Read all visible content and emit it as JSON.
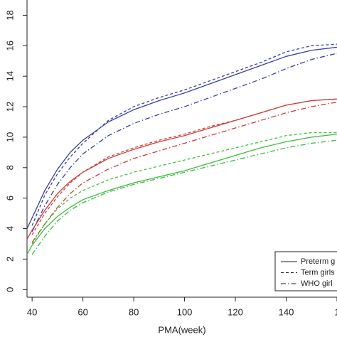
{
  "chart_data": {
    "type": "line",
    "xlabel": "PMA(week)",
    "x": [
      38,
      40,
      45,
      50,
      55,
      60,
      70,
      80,
      90,
      100,
      110,
      120,
      130,
      140,
      150,
      160
    ],
    "xlim": [
      38,
      160
    ],
    "ylim": [
      -0.5,
      19
    ],
    "xticks": [
      40,
      60,
      80,
      100,
      120,
      140,
      {
        "value": 160,
        "label": "1"
      }
    ],
    "yticks": [
      0,
      2,
      4,
      6,
      8,
      10,
      12,
      14,
      16,
      18
    ],
    "legend_position": "bottom-right",
    "legend": [
      {
        "label": "Preterm g",
        "dash": "solid"
      },
      {
        "label": "Term girls",
        "dash": "dashed"
      },
      {
        "label": "WHO girl",
        "dash": "dotdash"
      }
    ],
    "series": [
      {
        "color": "#3a3fa0",
        "dash": "solid",
        "values": [
          4.0,
          4.7,
          6.5,
          7.9,
          9.0,
          9.8,
          11.0,
          11.8,
          12.4,
          12.9,
          13.5,
          14.1,
          14.7,
          15.3,
          15.7,
          15.9
        ]
      },
      {
        "color": "#3a3fa0",
        "dash": "dashed",
        "values": [
          null,
          4.2,
          6.2,
          7.6,
          8.7,
          9.6,
          11.1,
          12.0,
          12.6,
          13.1,
          13.7,
          14.3,
          14.9,
          15.6,
          16.0,
          16.1
        ]
      },
      {
        "color": "#3a3fa0",
        "dash": "dotdash",
        "values": [
          null,
          3.8,
          5.5,
          6.9,
          8.0,
          8.9,
          10.1,
          10.9,
          11.5,
          12.0,
          12.6,
          13.2,
          13.8,
          14.5,
          15.1,
          15.5
        ]
      },
      {
        "color": "#d03a36",
        "dash": "solid",
        "values": [
          3.3,
          3.9,
          5.2,
          6.3,
          7.1,
          7.7,
          8.6,
          9.2,
          9.7,
          10.1,
          10.6,
          11.1,
          11.6,
          12.1,
          12.4,
          12.5
        ]
      },
      {
        "color": "#d03a36",
        "dash": "dashed",
        "values": [
          null,
          3.6,
          5.0,
          6.1,
          7.0,
          7.7,
          8.7,
          9.3,
          9.8,
          10.2,
          10.7,
          11.1,
          11.6,
          12.1,
          12.4,
          12.5
        ]
      },
      {
        "color": "#d03a36",
        "dash": "dotdash",
        "values": [
          null,
          3.1,
          4.3,
          5.4,
          6.3,
          7.0,
          7.9,
          8.6,
          9.1,
          9.6,
          10.1,
          10.6,
          11.1,
          11.6,
          12.0,
          12.3
        ]
      },
      {
        "color": "#3cbd3c",
        "dash": "solid",
        "values": [
          2.3,
          2.9,
          4.0,
          4.8,
          5.4,
          5.9,
          6.5,
          7.0,
          7.4,
          7.8,
          8.3,
          8.8,
          9.3,
          9.7,
          10.0,
          10.2
        ]
      },
      {
        "color": "#3cbd3c",
        "dash": "dashed",
        "values": [
          null,
          3.0,
          4.3,
          5.3,
          6.0,
          6.5,
          7.2,
          7.7,
          8.1,
          8.5,
          8.9,
          9.3,
          9.7,
          10.1,
          10.3,
          10.3
        ]
      },
      {
        "color": "#3cbd3c",
        "dash": "dotdash",
        "values": [
          null,
          2.3,
          3.5,
          4.5,
          5.2,
          5.7,
          6.4,
          6.9,
          7.3,
          7.7,
          8.1,
          8.5,
          8.9,
          9.3,
          9.6,
          9.8
        ]
      }
    ]
  }
}
